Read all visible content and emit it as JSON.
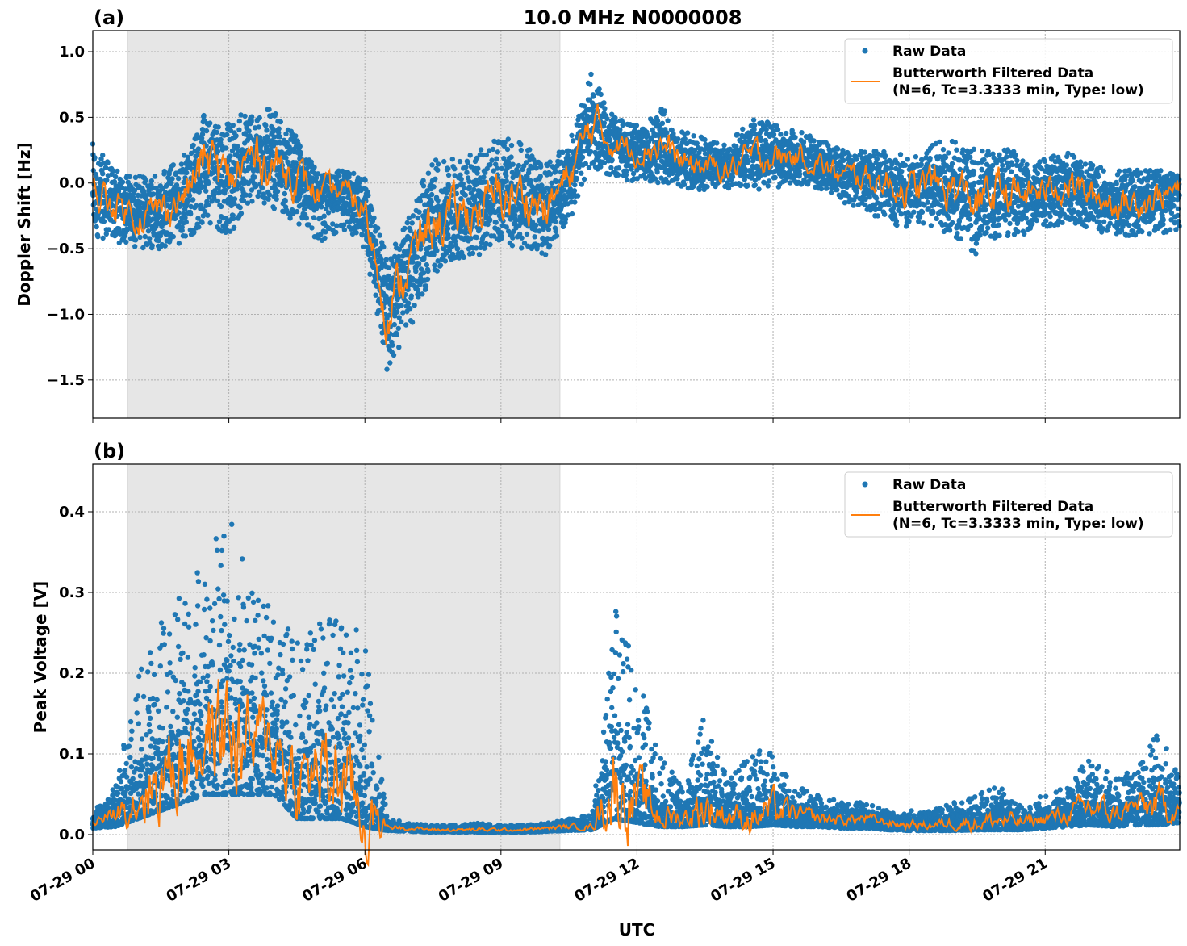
{
  "title": "10.0 MHz N0000008",
  "xlabel": "UTC",
  "x_tick_labels": [
    "07-29 00",
    "07-29 03",
    "07-29 06",
    "07-29 09",
    "07-29 12",
    "07-29 15",
    "07-29 18",
    "07-29 21"
  ],
  "colors": {
    "raw": "#1f77b4",
    "filtered": "#ff7f0e",
    "shade": "#e6e6e6"
  },
  "chart_data": [
    {
      "type": "scatter+line",
      "panel_label": "(a)",
      "ylabel": "Doppler Shift [Hz]",
      "xlim": [
        "07-29 00:00",
        "07-29 23:58"
      ],
      "ylim": [
        -1.79,
        1.16
      ],
      "y_ticks": [
        1.0,
        0.5,
        0.0,
        -0.5,
        -1.0,
        -1.5
      ],
      "y_tick_labels": [
        "1.0",
        "0.5",
        "0.0",
        "−0.5",
        "−1.0",
        "−1.5"
      ],
      "grid": true,
      "legend_position": "top-right",
      "shaded_region": [
        "07-29 00:46",
        "07-29 10:18"
      ],
      "x": [
        "00:00",
        "00:30",
        "01:00",
        "01:30",
        "02:00",
        "02:30",
        "03:00",
        "03:30",
        "04:00",
        "04:30",
        "05:00",
        "05:30",
        "06:00",
        "06:30",
        "07:00",
        "07:30",
        "08:00",
        "08:30",
        "09:00",
        "09:30",
        "10:00",
        "10:30",
        "11:00",
        "11:30",
        "12:00",
        "12:30",
        "13:00",
        "13:30",
        "14:00",
        "14:30",
        "15:00",
        "15:30",
        "16:00",
        "16:30",
        "17:00",
        "17:30",
        "18:00",
        "18:30",
        "19:00",
        "19:30",
        "20:00",
        "20:30",
        "21:00",
        "21:30",
        "22:00",
        "22:30",
        "23:00",
        "23:30",
        "23:58"
      ],
      "series": [
        {
          "name": "Raw Data",
          "kind": "scatter",
          "range": [
            [
              -0.4,
              0.3
            ],
            [
              -0.45,
              0.1
            ],
            [
              -0.5,
              0.05
            ],
            [
              -0.5,
              0.1
            ],
            [
              -0.45,
              0.2
            ],
            [
              -0.3,
              0.55
            ],
            [
              -0.4,
              0.45
            ],
            [
              -0.15,
              0.6
            ],
            [
              -0.2,
              0.55
            ],
            [
              -0.3,
              0.35
            ],
            [
              -0.45,
              0.05
            ],
            [
              -0.35,
              0.1
            ],
            [
              -0.5,
              0.05
            ],
            [
              -1.45,
              -0.6
            ],
            [
              -1.1,
              -0.2
            ],
            [
              -0.7,
              0.2
            ],
            [
              -0.6,
              0.2
            ],
            [
              -0.55,
              0.25
            ],
            [
              -0.5,
              0.35
            ],
            [
              -0.5,
              0.3
            ],
            [
              -0.55,
              0.15
            ],
            [
              -0.3,
              0.3
            ],
            [
              0.1,
              0.85
            ],
            [
              0.05,
              0.5
            ],
            [
              0.0,
              0.45
            ],
            [
              0.0,
              0.6
            ],
            [
              -0.05,
              0.4
            ],
            [
              -0.05,
              0.35
            ],
            [
              -0.05,
              0.3
            ],
            [
              -0.05,
              0.5
            ],
            [
              -0.05,
              0.45
            ],
            [
              0.0,
              0.4
            ],
            [
              -0.05,
              0.35
            ],
            [
              -0.15,
              0.25
            ],
            [
              -0.2,
              0.25
            ],
            [
              -0.3,
              0.25
            ],
            [
              -0.35,
              0.2
            ],
            [
              -0.35,
              0.3
            ],
            [
              -0.4,
              0.35
            ],
            [
              -0.55,
              0.25
            ],
            [
              -0.4,
              0.3
            ],
            [
              -0.4,
              0.2
            ],
            [
              -0.35,
              0.2
            ],
            [
              -0.3,
              0.25
            ],
            [
              -0.35,
              0.15
            ],
            [
              -0.4,
              0.1
            ],
            [
              -0.4,
              0.1
            ],
            [
              -0.4,
              0.1
            ],
            [
              -0.35,
              0.05
            ]
          ]
        },
        {
          "name": "Butterworth Filtered Data",
          "name_line2": "(N=6, Tc=3.3333 min, Type: low)",
          "kind": "line",
          "values": [
            -0.1,
            -0.15,
            -0.25,
            -0.2,
            -0.1,
            0.2,
            0.0,
            0.2,
            0.15,
            0.05,
            -0.1,
            -0.05,
            -0.2,
            -1.0,
            -0.6,
            -0.3,
            -0.25,
            -0.2,
            -0.1,
            -0.1,
            -0.2,
            0.05,
            0.45,
            0.3,
            0.25,
            0.3,
            0.15,
            0.12,
            0.1,
            0.2,
            0.2,
            0.2,
            0.15,
            0.05,
            0.05,
            0.0,
            -0.05,
            0.0,
            -0.05,
            -0.15,
            -0.05,
            -0.1,
            -0.05,
            0.0,
            -0.1,
            -0.15,
            -0.15,
            -0.1,
            -0.05
          ]
        }
      ]
    },
    {
      "type": "scatter+line",
      "panel_label": "(b)",
      "ylabel": "Peak Voltage [V]",
      "xlim": [
        "07-29 00:00",
        "07-29 23:58"
      ],
      "ylim": [
        -0.019,
        0.459
      ],
      "y_ticks": [
        0.0,
        0.1,
        0.2,
        0.3,
        0.4
      ],
      "y_tick_labels": [
        "0.0",
        "0.1",
        "0.2",
        "0.3",
        "0.4"
      ],
      "grid": true,
      "legend_position": "top-right",
      "shaded_region": [
        "07-29 00:46",
        "07-29 10:18"
      ],
      "x": [
        "00:00",
        "00:30",
        "01:00",
        "01:30",
        "02:00",
        "02:30",
        "03:00",
        "03:30",
        "04:00",
        "04:30",
        "05:00",
        "05:30",
        "06:00",
        "06:30",
        "07:00",
        "07:30",
        "08:00",
        "08:30",
        "09:00",
        "09:30",
        "10:00",
        "10:30",
        "11:00",
        "11:30",
        "12:00",
        "12:30",
        "13:00",
        "13:30",
        "14:00",
        "14:30",
        "15:00",
        "15:30",
        "16:00",
        "16:30",
        "17:00",
        "17:30",
        "18:00",
        "18:30",
        "19:00",
        "19:30",
        "20:00",
        "20:30",
        "21:00",
        "21:30",
        "22:00",
        "22:30",
        "23:00",
        "23:30",
        "23:58"
      ],
      "series": [
        {
          "name": "Raw Data",
          "kind": "scatter",
          "range": [
            [
              0.008,
              0.03
            ],
            [
              0.01,
              0.06
            ],
            [
              0.02,
              0.2
            ],
            [
              0.03,
              0.27
            ],
            [
              0.04,
              0.3
            ],
            [
              0.05,
              0.34
            ],
            [
              0.05,
              0.43
            ],
            [
              0.05,
              0.3
            ],
            [
              0.05,
              0.28
            ],
            [
              0.02,
              0.24
            ],
            [
              0.02,
              0.27
            ],
            [
              0.02,
              0.3
            ],
            [
              0.01,
              0.24
            ],
            [
              0.005,
              0.02
            ],
            [
              0.004,
              0.014
            ],
            [
              0.003,
              0.012
            ],
            [
              0.003,
              0.012
            ],
            [
              0.003,
              0.014
            ],
            [
              0.003,
              0.012
            ],
            [
              0.003,
              0.012
            ],
            [
              0.004,
              0.014
            ],
            [
              0.005,
              0.02
            ],
            [
              0.006,
              0.025
            ],
            [
              0.02,
              0.29
            ],
            [
              0.015,
              0.2
            ],
            [
              0.01,
              0.1
            ],
            [
              0.01,
              0.06
            ],
            [
              0.012,
              0.15
            ],
            [
              0.01,
              0.07
            ],
            [
              0.01,
              0.1
            ],
            [
              0.012,
              0.12
            ],
            [
              0.01,
              0.06
            ],
            [
              0.01,
              0.05
            ],
            [
              0.008,
              0.04
            ],
            [
              0.008,
              0.04
            ],
            [
              0.006,
              0.03
            ],
            [
              0.005,
              0.03
            ],
            [
              0.005,
              0.03
            ],
            [
              0.005,
              0.04
            ],
            [
              0.006,
              0.05
            ],
            [
              0.006,
              0.06
            ],
            [
              0.006,
              0.04
            ],
            [
              0.008,
              0.05
            ],
            [
              0.01,
              0.06
            ],
            [
              0.012,
              0.1
            ],
            [
              0.01,
              0.07
            ],
            [
              0.012,
              0.08
            ],
            [
              0.012,
              0.13
            ],
            [
              0.015,
              0.07
            ]
          ]
        },
        {
          "name": "Butterworth Filtered Data",
          "name_line2": "(N=6, Tc=3.3333 min, Type: low)",
          "kind": "line",
          "values": [
            0.015,
            0.025,
            0.05,
            0.07,
            0.1,
            0.12,
            0.13,
            0.11,
            0.12,
            0.06,
            0.08,
            0.07,
            0.02,
            0.01,
            0.008,
            0.006,
            0.006,
            0.006,
            0.006,
            0.006,
            0.008,
            0.01,
            0.01,
            0.06,
            0.04,
            0.025,
            0.02,
            0.035,
            0.025,
            0.02,
            0.03,
            0.025,
            0.02,
            0.018,
            0.02,
            0.015,
            0.012,
            0.012,
            0.015,
            0.015,
            0.018,
            0.015,
            0.02,
            0.025,
            0.035,
            0.025,
            0.035,
            0.035,
            0.035
          ]
        }
      ]
    }
  ]
}
